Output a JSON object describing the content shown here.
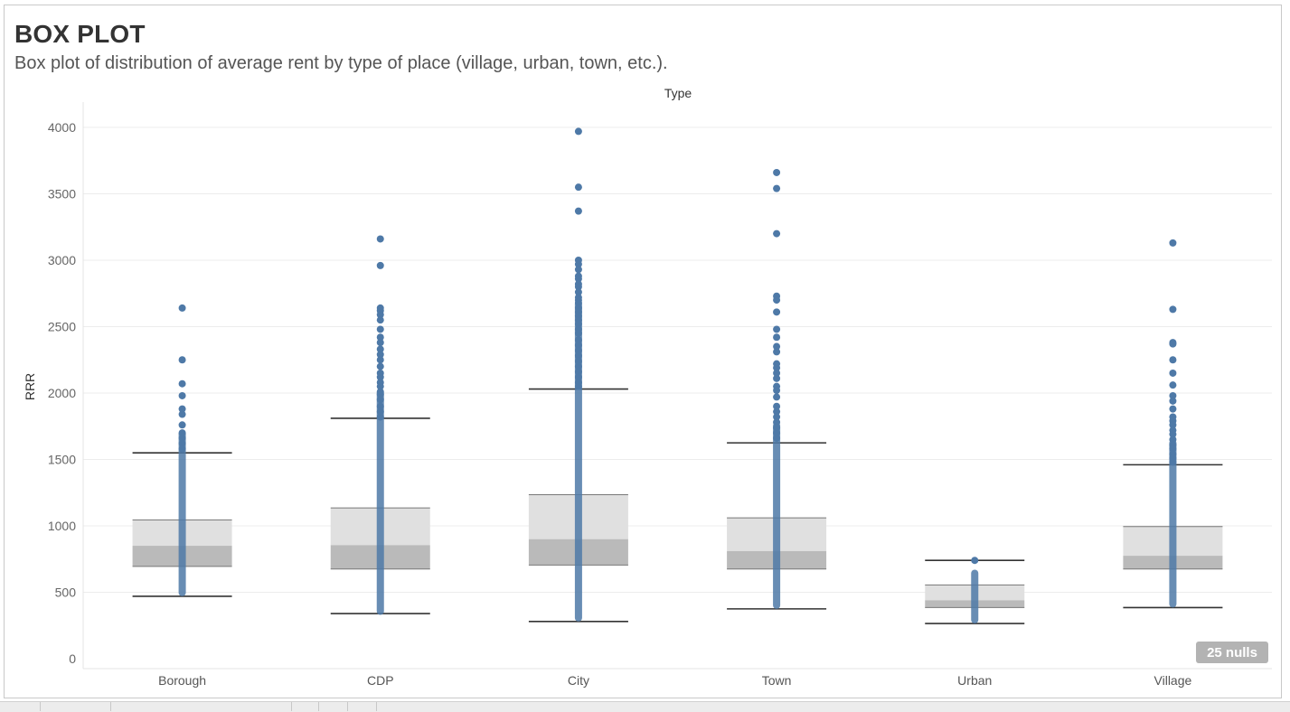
{
  "header": {
    "title": "BOX PLOT",
    "subtitle": "Box plot of distribution of average rent by type of place (village, urban, town, etc.)."
  },
  "nulls_badge": "25 nulls",
  "colors": {
    "point": "#4e79a7",
    "upper_box": "#e0e0e0",
    "lower_box": "#bababa",
    "whisker": "#333333",
    "grid": "#ececec",
    "badge_bg": "#b3b3b3",
    "badge_text": "#ffffff"
  },
  "chart_data": {
    "type": "box",
    "xlabel": "Type",
    "ylabel": "RRR",
    "ylim": [
      0,
      4000
    ],
    "yticks": [
      0,
      500,
      1000,
      1500,
      2000,
      2500,
      3000,
      3500,
      4000
    ],
    "grid": true,
    "categories": [
      "Borough",
      "CDP",
      "City",
      "Town",
      "Urban",
      "Village"
    ],
    "boxes": [
      {
        "category": "Borough",
        "whisker_low": 470,
        "q1": 695,
        "median": 850,
        "q3": 1045,
        "whisker_high": 1550,
        "cluster_range": [
          470,
          1720
        ],
        "outliers": [
          2640,
          2250,
          2070,
          1980,
          1880,
          1840,
          1760,
          1700,
          1660,
          1620,
          1580
        ]
      },
      {
        "category": "CDP",
        "whisker_low": 340,
        "q1": 675,
        "median": 855,
        "q3": 1135,
        "whisker_high": 1810,
        "cluster_range": [
          330,
          2030
        ],
        "outliers": [
          3160,
          2960,
          2640,
          2620,
          2590,
          2550,
          2480,
          2420,
          2380,
          2330,
          2290,
          2250,
          2200,
          2150,
          2120,
          2080,
          2050,
          2010,
          1990,
          1950,
          1900,
          1860,
          1820
        ]
      },
      {
        "category": "City",
        "whisker_low": 280,
        "q1": 705,
        "median": 900,
        "q3": 1235,
        "whisker_high": 2030,
        "cluster_range": [
          280,
          2700
        ],
        "outliers": [
          3970,
          3550,
          3370,
          3000,
          2970,
          2930,
          2880,
          2860,
          2820,
          2800,
          2760,
          2720,
          2700,
          2680,
          2640,
          2610,
          2580,
          2550,
          2520,
          2480,
          2450,
          2400,
          2360,
          2320,
          2280,
          2240,
          2200,
          2160,
          2120,
          2080,
          2050
        ]
      },
      {
        "category": "Town",
        "whisker_low": 375,
        "q1": 675,
        "median": 810,
        "q3": 1060,
        "whisker_high": 1625,
        "cluster_range": [
          375,
          1780
        ],
        "outliers": [
          3660,
          3540,
          3200,
          2730,
          2700,
          2610,
          2480,
          2420,
          2350,
          2310,
          2220,
          2190,
          2150,
          2110,
          2050,
          2020,
          1970,
          1900,
          1860,
          1820,
          1780,
          1740,
          1700,
          1660
        ]
      },
      {
        "category": "Urban",
        "whisker_low": 265,
        "q1": 385,
        "median": 440,
        "q3": 555,
        "whisker_high": 740,
        "cluster_range": [
          265,
          670
        ],
        "outliers": [
          740
        ]
      },
      {
        "category": "Village",
        "whisker_low": 385,
        "q1": 675,
        "median": 775,
        "q3": 995,
        "whisker_high": 1460,
        "cluster_range": [
          385,
          1650
        ],
        "outliers": [
          3130,
          2630,
          2380,
          2370,
          2250,
          2150,
          2060,
          1980,
          1940,
          1880,
          1820,
          1790,
          1760,
          1720,
          1690,
          1650,
          1610,
          1580,
          1540,
          1510,
          1480
        ]
      }
    ]
  }
}
